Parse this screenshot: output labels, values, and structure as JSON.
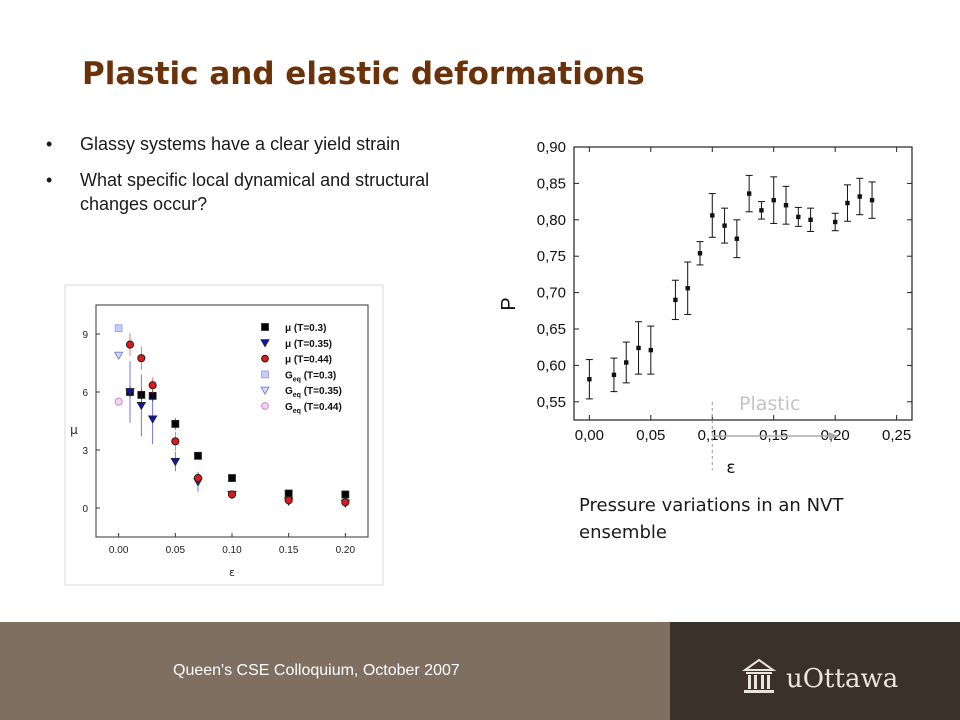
{
  "slide": {
    "title": "Plastic and elastic deformations",
    "bullets": [
      "Glassy systems have a clear yield strain",
      "What specific local dynamical and structural changes occur?"
    ],
    "caption": "Pressure variations in an NVT ensemble",
    "footer": "Queen's CSE Colloquium, October 2007",
    "logo_text": "uOttawa"
  },
  "chart_data": [
    {
      "type": "scatter",
      "xlabel": "ε",
      "ylabel": "μ",
      "xlim": [
        -0.02,
        0.22
      ],
      "ylim": [
        -1.5,
        10.5
      ],
      "xticks": [
        0.0,
        0.05,
        0.1,
        0.15,
        0.2
      ],
      "xtick_labels": [
        "0.00",
        "0.05",
        "0.10",
        "0.15",
        "0.20"
      ],
      "yticks": [
        0,
        3,
        6,
        9
      ],
      "ytick_labels": [
        "0",
        "3",
        "6",
        "9"
      ],
      "legend_position": "top-right",
      "series": [
        {
          "name": "μ (T=0.3)",
          "marker": "square",
          "color": "#000000",
          "filled": true,
          "points": [
            [
              0.01,
              6.0
            ],
            [
              0.02,
              5.85
            ],
            [
              0.03,
              5.8
            ],
            [
              0.05,
              4.35
            ],
            [
              0.07,
              2.7
            ],
            [
              0.1,
              1.55
            ],
            [
              0.15,
              0.75
            ],
            [
              0.2,
              0.7
            ]
          ],
          "errors": [
            0.3,
            0.3,
            0.3,
            0.3,
            0.2,
            0.1,
            0.05,
            0.05
          ]
        },
        {
          "name": "μ (T=0.35)",
          "marker": "triangle-down",
          "color": "#0a12d8",
          "filled": true,
          "points": [
            [
              0.01,
              6.0
            ],
            [
              0.02,
              5.3
            ],
            [
              0.03,
              4.6
            ],
            [
              0.05,
              2.4
            ],
            [
              0.07,
              1.35
            ],
            [
              0.1,
              0.7
            ],
            [
              0.15,
              0.35
            ],
            [
              0.2,
              0.25
            ]
          ],
          "errors": [
            1.6,
            1.6,
            1.3,
            0.5,
            0.5,
            0.1,
            0.05,
            0.05
          ]
        },
        {
          "name": "μ (T=0.44)",
          "marker": "circle",
          "color": "#e01818",
          "filled": true,
          "points": [
            [
              0.01,
              8.45
            ],
            [
              0.02,
              7.75
            ],
            [
              0.03,
              6.35
            ],
            [
              0.05,
              3.45
            ],
            [
              0.07,
              1.55
            ],
            [
              0.1,
              0.7
            ],
            [
              0.15,
              0.4
            ],
            [
              0.2,
              0.3
            ]
          ],
          "errors": [
            0.6,
            0.6,
            0.4,
            0.5,
            0.3,
            0.1,
            0.05,
            0.05
          ]
        },
        {
          "name": "Geq (T=0.3)",
          "marker": "square",
          "color": "#9aa8f0",
          "filled": false,
          "points": [
            [
              0.0,
              9.3
            ]
          ],
          "errors": [
            0
          ]
        },
        {
          "name": "Geq (T=0.35)",
          "marker": "triangle-down",
          "color": "#7a86d8",
          "filled": false,
          "points": [
            [
              0.0,
              7.9
            ]
          ],
          "errors": [
            0
          ]
        },
        {
          "name": "Geq (T=0.44)",
          "marker": "circle",
          "color": "#d08ad0",
          "filled": false,
          "points": [
            [
              0.0,
              5.5
            ]
          ],
          "errors": [
            0
          ]
        }
      ],
      "legend_labels": [
        {
          "prefix": "μ",
          "sub": "",
          "rest": " (T=0.3)"
        },
        {
          "prefix": "μ",
          "sub": "",
          "rest": " (T=0.35)"
        },
        {
          "prefix": "μ",
          "sub": "",
          "rest": " (T=0.44)"
        },
        {
          "prefix": "G",
          "sub": "eq",
          "rest": " (T=0.3)"
        },
        {
          "prefix": "G",
          "sub": "eq",
          "rest": " (T=0.35)"
        },
        {
          "prefix": "G",
          "sub": "eq",
          "rest": " (T=0.44)"
        }
      ]
    },
    {
      "type": "scatter",
      "xlabel": "ε",
      "ylabel": "P",
      "xlim": [
        -0.0125,
        0.2625
      ],
      "ylim": [
        0.525,
        0.9
      ],
      "xticks": [
        0.0,
        0.05,
        0.1,
        0.15,
        0.2,
        0.25
      ],
      "xtick_labels": [
        "0,00",
        "0,05",
        "0,10",
        "0,15",
        "0,20",
        "0,25"
      ],
      "yticks": [
        0.55,
        0.6,
        0.65,
        0.7,
        0.75,
        0.8,
        0.85,
        0.9
      ],
      "ytick_labels": [
        "0,55",
        "0,60",
        "0,65",
        "0,70",
        "0,75",
        "0,80",
        "0,85",
        "0,90"
      ],
      "annotation": "Plastic",
      "yield_line_x": 0.1,
      "series": [
        {
          "marker": "square",
          "color": "#000000",
          "x": [
            0.0,
            0.02,
            0.03,
            0.04,
            0.05,
            0.07,
            0.08,
            0.09,
            0.1,
            0.11,
            0.12,
            0.13,
            0.14,
            0.15,
            0.16,
            0.17,
            0.18,
            0.2,
            0.21,
            0.22,
            0.23
          ],
          "y": [
            0.581,
            0.587,
            0.604,
            0.624,
            0.621,
            0.69,
            0.706,
            0.754,
            0.806,
            0.792,
            0.774,
            0.836,
            0.813,
            0.827,
            0.82,
            0.804,
            0.8,
            0.797,
            0.823,
            0.832,
            0.827
          ],
          "errors": [
            0.027,
            0.023,
            0.028,
            0.036,
            0.033,
            0.027,
            0.036,
            0.016,
            0.03,
            0.024,
            0.026,
            0.025,
            0.012,
            0.032,
            0.026,
            0.013,
            0.016,
            0.012,
            0.025,
            0.025,
            0.025
          ]
        }
      ]
    }
  ]
}
